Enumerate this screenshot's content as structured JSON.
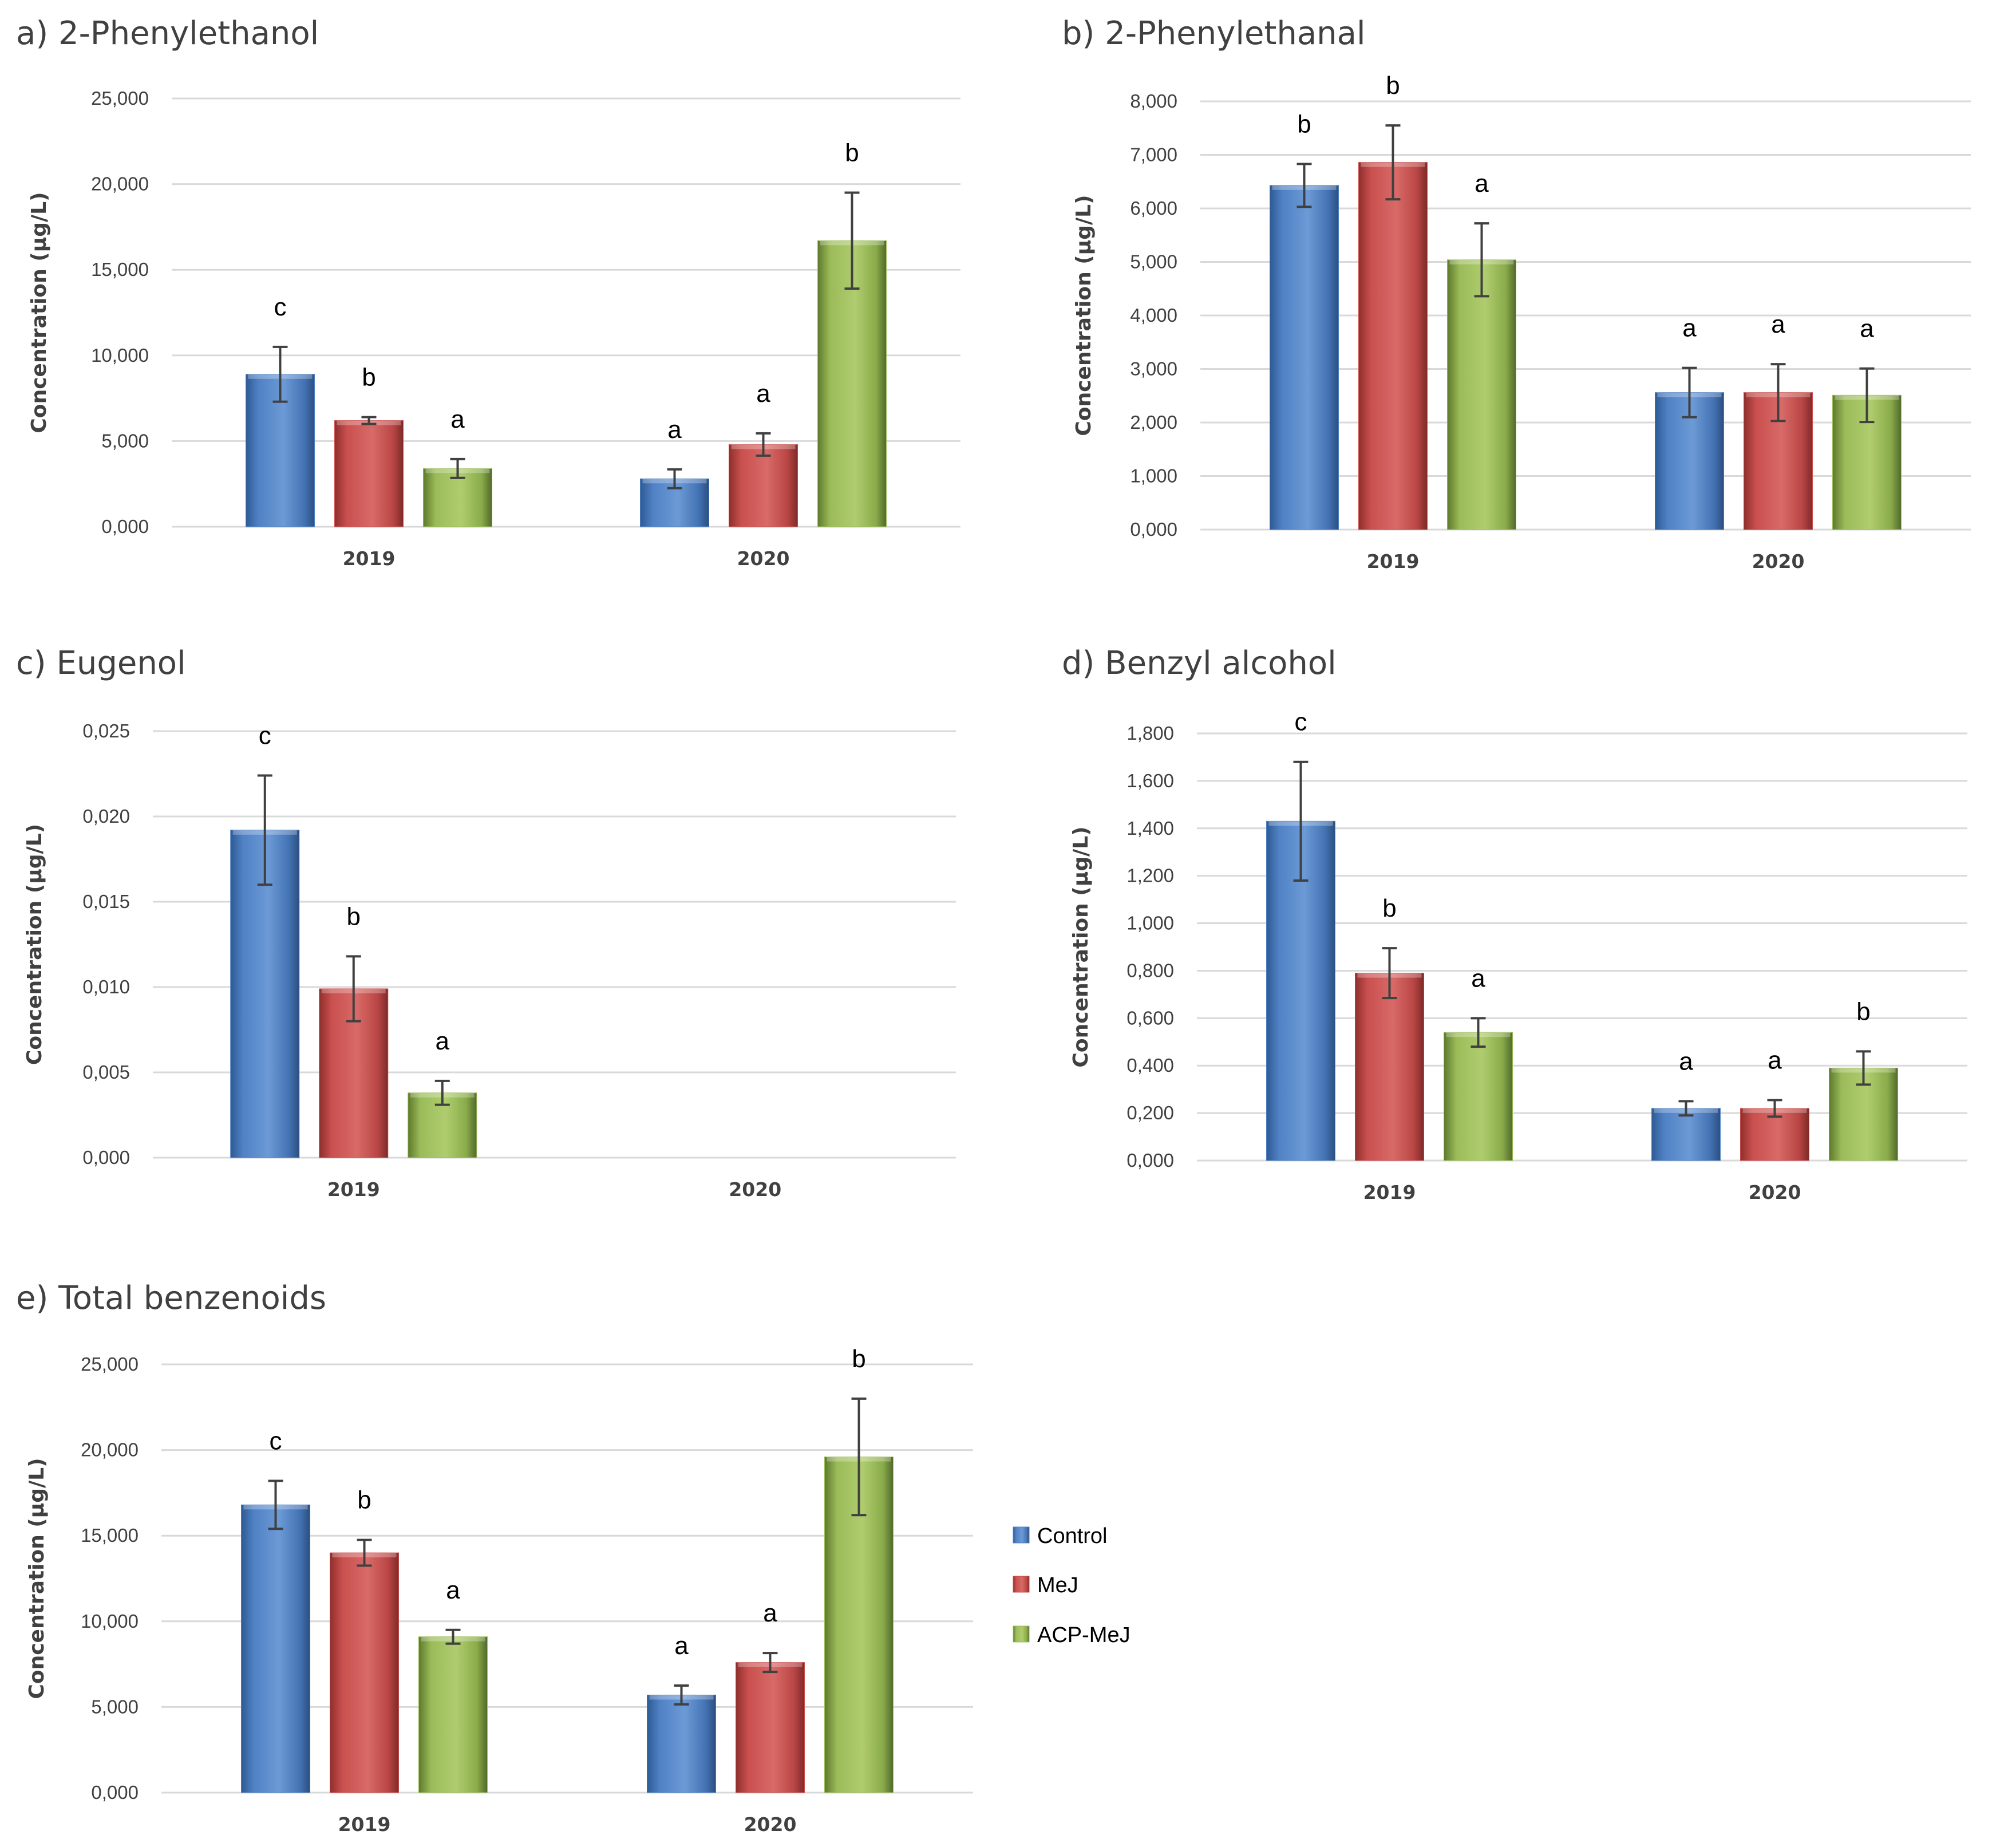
{
  "chart_data": [
    {
      "type": "bar",
      "title": "a) 2-Phenylethanol",
      "ylabel": "Concentration (µg/L)",
      "xlabel": "",
      "ylim": [
        0,
        25000
      ],
      "yticks": [
        0,
        5000,
        10000,
        15000,
        20000,
        25000
      ],
      "ytick_labels": [
        "0,000",
        "5,000",
        "10,000",
        "15,000",
        "20,000",
        "25,000"
      ],
      "categories": [
        "2019",
        "2020"
      ],
      "series": [
        {
          "name": "Control",
          "values": [
            8900,
            2800
          ],
          "errors": [
            1600,
            550
          ],
          "labels": [
            "c",
            "a"
          ]
        },
        {
          "name": "MeJ",
          "values": [
            6200,
            4800
          ],
          "errors": [
            200,
            650
          ],
          "labels": [
            "b",
            "a"
          ]
        },
        {
          "name": "ACP-MeJ",
          "values": [
            3400,
            16700
          ],
          "errors": [
            550,
            2800
          ],
          "labels": [
            "a",
            "b"
          ]
        }
      ]
    },
    {
      "type": "bar",
      "title": "b) 2-Phenylethanal",
      "ylabel": "Concentration (µg/L)",
      "xlabel": "",
      "ylim": [
        0,
        8000
      ],
      "yticks": [
        0,
        1000,
        2000,
        3000,
        4000,
        5000,
        6000,
        7000,
        8000
      ],
      "ytick_labels": [
        "0,000",
        "1,000",
        "2,000",
        "3,000",
        "4,000",
        "5,000",
        "6,000",
        "7,000",
        "8,000"
      ],
      "categories": [
        "2019",
        "2020"
      ],
      "series": [
        {
          "name": "Control",
          "values": [
            6430,
            2560
          ],
          "errors": [
            400,
            460
          ],
          "labels": [
            "b",
            "a"
          ]
        },
        {
          "name": "MeJ",
          "values": [
            6860,
            2560
          ],
          "errors": [
            690,
            530
          ],
          "labels": [
            "b",
            "a"
          ]
        },
        {
          "name": "ACP-MeJ",
          "values": [
            5040,
            2510
          ],
          "errors": [
            680,
            500
          ],
          "labels": [
            "a",
            "a"
          ]
        }
      ]
    },
    {
      "type": "bar",
      "title": "c) Eugenol",
      "ylabel": "Concentration (µg/L)",
      "xlabel": "",
      "ylim": [
        0,
        0.025
      ],
      "yticks": [
        0,
        0.005,
        0.01,
        0.015,
        0.02,
        0.025
      ],
      "ytick_labels": [
        "0,000",
        "0,005",
        "0,010",
        "0,015",
        "0,020",
        "0,025"
      ],
      "categories": [
        "2019",
        "2020"
      ],
      "series": [
        {
          "name": "Control",
          "values": [
            0.0192,
            0
          ],
          "errors": [
            0.0032,
            0
          ],
          "labels": [
            "c",
            ""
          ]
        },
        {
          "name": "MeJ",
          "values": [
            0.0099,
            0
          ],
          "errors": [
            0.0019,
            0
          ],
          "labels": [
            "b",
            ""
          ]
        },
        {
          "name": "ACP-MeJ",
          "values": [
            0.0038,
            0
          ],
          "errors": [
            0.0007,
            0
          ],
          "labels": [
            "a",
            ""
          ]
        }
      ]
    },
    {
      "type": "bar",
      "title": "d) Benzyl alcohol",
      "ylabel": "Concentration (µg/L)",
      "xlabel": "",
      "ylim": [
        0,
        1.8
      ],
      "yticks": [
        0,
        0.2,
        0.4,
        0.6,
        0.8,
        1.0,
        1.2,
        1.4,
        1.6,
        1.8
      ],
      "ytick_labels": [
        "0,000",
        "0,200",
        "0,400",
        "0,600",
        "0,800",
        "1,000",
        "1,200",
        "1,400",
        "1,600",
        "1,800"
      ],
      "categories": [
        "2019",
        "2020"
      ],
      "series": [
        {
          "name": "Control",
          "values": [
            1.43,
            0.22
          ],
          "errors": [
            0.25,
            0.03
          ],
          "labels": [
            "c",
            "a"
          ]
        },
        {
          "name": "MeJ",
          "values": [
            0.79,
            0.22
          ],
          "errors": [
            0.105,
            0.035
          ],
          "labels": [
            "b",
            "a"
          ]
        },
        {
          "name": "ACP-MeJ",
          "values": [
            0.54,
            0.39
          ],
          "errors": [
            0.06,
            0.07
          ],
          "labels": [
            "a",
            "b"
          ]
        }
      ]
    },
    {
      "type": "bar",
      "title": "e) Total benzenoids",
      "ylabel": "Concentration (µg/L)",
      "xlabel": "",
      "ylim": [
        0,
        25000
      ],
      "yticks": [
        0,
        5000,
        10000,
        15000,
        20000,
        25000
      ],
      "ytick_labels": [
        "0,000",
        "5,000",
        "10,000",
        "15,000",
        "20,000",
        "25,000"
      ],
      "categories": [
        "2019",
        "2020"
      ],
      "series": [
        {
          "name": "Control",
          "values": [
            16800,
            5700
          ],
          "errors": [
            1400,
            550
          ],
          "labels": [
            "c",
            "a"
          ]
        },
        {
          "name": "MeJ",
          "values": [
            14000,
            7600
          ],
          "errors": [
            750,
            550
          ],
          "labels": [
            "b",
            "a"
          ]
        },
        {
          "name": "ACP-MeJ",
          "values": [
            9100,
            19600
          ],
          "errors": [
            400,
            3400
          ],
          "labels": [
            "a",
            "b"
          ]
        }
      ]
    }
  ],
  "legend": {
    "entries": [
      "Control",
      "MeJ",
      "ACP-MeJ"
    ],
    "placement": "right of panel e"
  },
  "colors": {
    "Control": "#4f81c4",
    "MeJ": "#c9504e",
    "ACP-MeJ": "#9bbb59"
  }
}
